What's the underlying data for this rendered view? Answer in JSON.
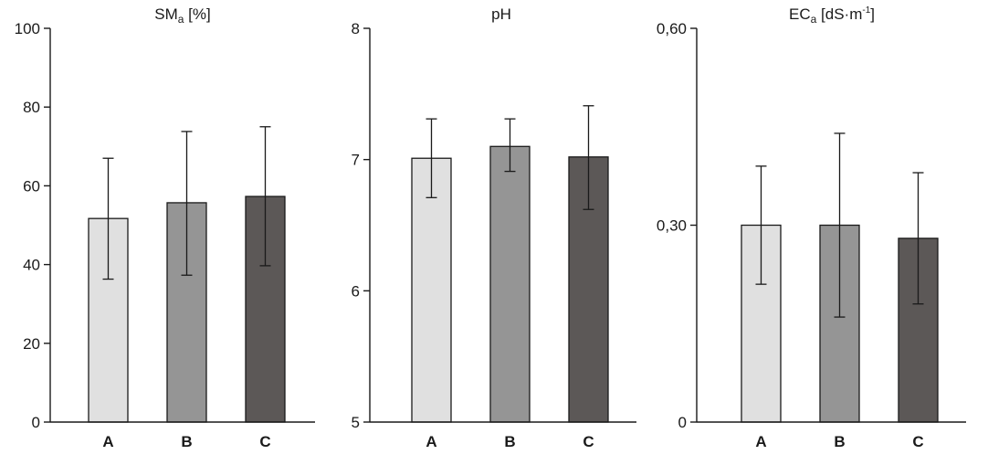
{
  "chart_data": [
    {
      "type": "bar",
      "title": "SM",
      "title_sub": "a",
      "title_suffix": " [%]",
      "categories": [
        "A",
        "B",
        "C"
      ],
      "values": [
        51.7,
        55.7,
        57.3
      ],
      "error_low": [
        36.3,
        37.3,
        39.7
      ],
      "error_high": [
        67.0,
        73.8,
        75.0
      ],
      "ylim": [
        0,
        100
      ],
      "yticks": [
        0,
        20,
        40,
        60,
        80,
        100
      ],
      "ytick_labels": [
        "0",
        "20",
        "40",
        "60",
        "80",
        "100"
      ],
      "colors": [
        "#e0e0e0",
        "#959595",
        "#5c5857"
      ]
    },
    {
      "type": "bar",
      "title": "pH",
      "title_sub": "",
      "title_suffix": "",
      "categories": [
        "A",
        "B",
        "C"
      ],
      "values": [
        7.01,
        7.1,
        7.02
      ],
      "error_low": [
        6.71,
        6.91,
        6.62
      ],
      "error_high": [
        7.31,
        7.31,
        7.41
      ],
      "ylim": [
        5,
        8
      ],
      "yticks": [
        5,
        6,
        7,
        8
      ],
      "ytick_labels": [
        "5",
        "6",
        "7",
        "8"
      ],
      "colors": [
        "#e0e0e0",
        "#959595",
        "#5c5857"
      ]
    },
    {
      "type": "bar",
      "title": "EC",
      "title_sub": "a",
      "title_suffix": " [dS·m",
      "title_sup": "-1",
      "title_end": "]",
      "categories": [
        "A",
        "B",
        "C"
      ],
      "values": [
        0.3,
        0.3,
        0.28
      ],
      "error_low": [
        0.21,
        0.16,
        0.18
      ],
      "error_high": [
        0.39,
        0.44,
        0.38
      ],
      "ylim": [
        0,
        0.6
      ],
      "yticks": [
        0,
        0.3,
        0.6
      ],
      "ytick_labels": [
        "0",
        "0,30",
        "0,60"
      ],
      "colors": [
        "#e0e0e0",
        "#959595",
        "#5c5857"
      ]
    }
  ]
}
